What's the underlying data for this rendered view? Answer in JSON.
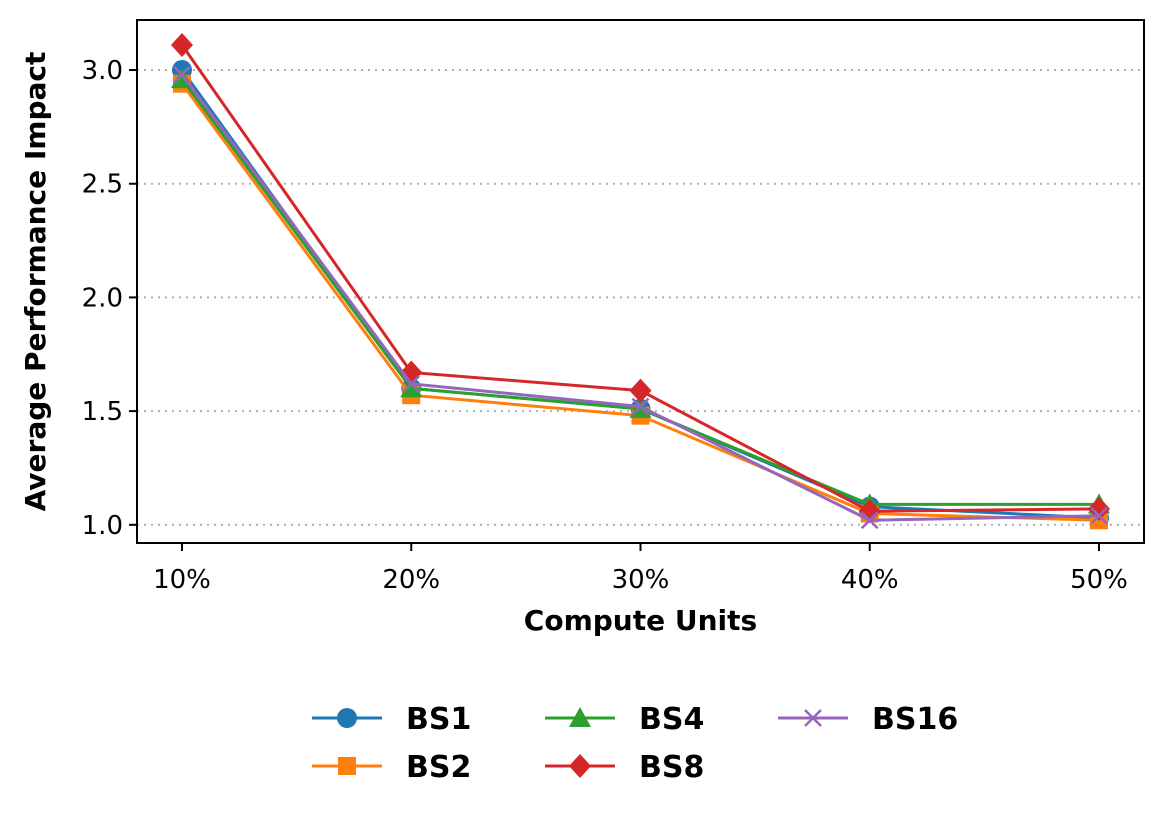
{
  "chart_data": {
    "type": "line",
    "title": "",
    "xlabel": "Compute Units",
    "ylabel": "Average Performance Impact",
    "categories": [
      "10%",
      "20%",
      "30%",
      "40%",
      "50%"
    ],
    "yticks": [
      "1.0",
      "1.5",
      "2.0",
      "2.5",
      "3.0"
    ],
    "ylim": [
      0.92,
      3.22
    ],
    "grid": "y-dotted",
    "legend_position": "bottom-center",
    "series": [
      {
        "name": "BS1",
        "color": "#1f77b4",
        "marker": "circle",
        "values": [
          3.0,
          1.6,
          1.51,
          1.08,
          1.03
        ]
      },
      {
        "name": "BS2",
        "color": "#ff7f0e",
        "marker": "square",
        "values": [
          2.94,
          1.57,
          1.48,
          1.05,
          1.02
        ]
      },
      {
        "name": "BS4",
        "color": "#2ca02c",
        "marker": "triangle",
        "values": [
          2.96,
          1.6,
          1.51,
          1.09,
          1.09
        ]
      },
      {
        "name": "BS8",
        "color": "#d62728",
        "marker": "diamond",
        "values": [
          3.11,
          1.67,
          1.59,
          1.06,
          1.07
        ]
      },
      {
        "name": "BS16",
        "color": "#9467bd",
        "marker": "x",
        "values": [
          2.98,
          1.62,
          1.52,
          1.02,
          1.04
        ]
      }
    ]
  }
}
